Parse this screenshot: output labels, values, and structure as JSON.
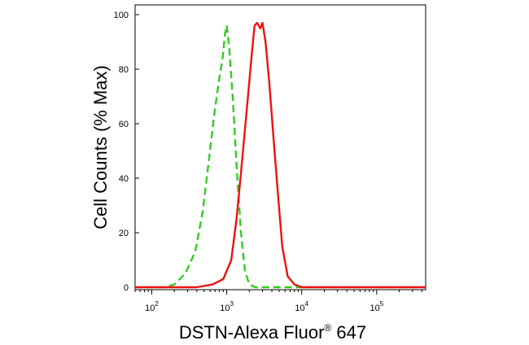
{
  "chart_data": {
    "type": "line",
    "title": "",
    "xlabel": "DSTN-Alexa Fluor",
    "xlabel_sup": "®",
    "xlabel_suffix": " 647",
    "ylabel": "Cell Counts (% Max)",
    "xscale": "log",
    "xlim": [
      60,
      450000
    ],
    "ylim": [
      0,
      100
    ],
    "grid": false,
    "x_ticks": [
      {
        "base": "10",
        "exp": "2",
        "value": 100
      },
      {
        "base": "10",
        "exp": "3",
        "value": 1000
      },
      {
        "base": "10",
        "exp": "4",
        "value": 10000
      },
      {
        "base": "10",
        "exp": "5",
        "value": 100000
      }
    ],
    "y_ticks": [
      {
        "label": "0",
        "value": 0
      },
      {
        "label": "20",
        "value": 20
      },
      {
        "label": "40",
        "value": 40
      },
      {
        "label": "60",
        "value": 60
      },
      {
        "label": "80",
        "value": 80
      },
      {
        "label": "100",
        "value": 100
      }
    ],
    "series": [
      {
        "color": "#33cc22",
        "style": "dashed",
        "x": [
          60,
          150,
          200,
          280,
          380,
          480,
          580,
          680,
          780,
          880,
          950,
          1000,
          1080,
          1200,
          1350,
          1550,
          1750,
          2000,
          2400,
          450000
        ],
        "y": [
          0,
          0,
          1,
          5,
          13,
          28,
          47,
          63,
          75,
          84,
          93,
          96,
          88,
          70,
          45,
          20,
          6,
          1,
          0,
          0
        ]
      },
      {
        "color": "#ee1111",
        "style": "solid",
        "x": [
          60,
          400,
          650,
          900,
          1150,
          1350,
          1550,
          1750,
          1950,
          2150,
          2350,
          2550,
          2800,
          3000,
          3300,
          3700,
          4200,
          4800,
          5500,
          6500,
          8000,
          10000,
          450000
        ],
        "y": [
          0,
          0,
          1,
          3,
          10,
          25,
          42,
          58,
          72,
          85,
          96,
          97,
          95,
          97,
          90,
          75,
          55,
          35,
          15,
          4,
          1,
          0,
          0
        ]
      }
    ]
  }
}
